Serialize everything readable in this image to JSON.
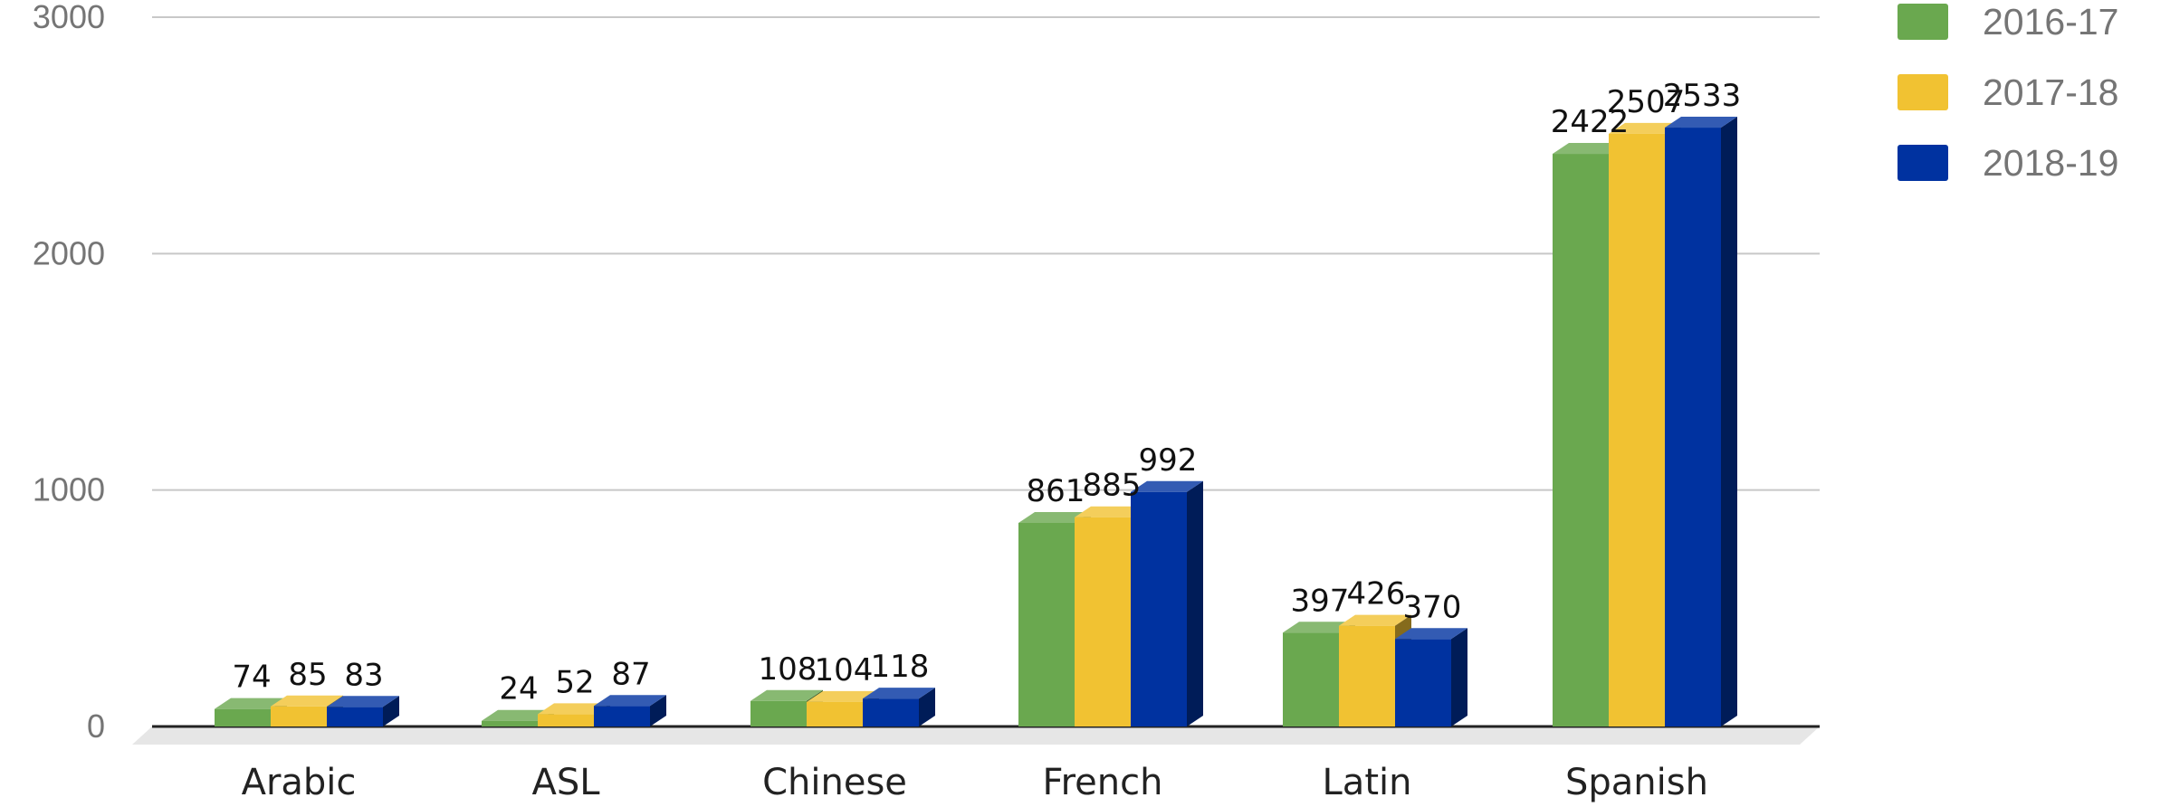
{
  "chart_data": {
    "type": "bar",
    "categories": [
      "Arabic",
      "ASL",
      "Chinese",
      "French",
      "Latin",
      "Spanish"
    ],
    "series": [
      {
        "name": "2016-17",
        "color": "#6aa84f",
        "values": [
          74,
          24,
          108,
          861,
          397,
          2422
        ]
      },
      {
        "name": "2017-18",
        "color": "#f1c232",
        "values": [
          85,
          52,
          104,
          885,
          426,
          2507
        ]
      },
      {
        "name": "2018-19",
        "color": "#0032a0",
        "values": [
          83,
          87,
          118,
          992,
          370,
          2533
        ]
      }
    ],
    "yticks": [
      "0",
      "1000",
      "2000",
      "3000"
    ],
    "ylim": [
      0,
      3000
    ],
    "title": "",
    "xlabel": "",
    "ylabel": "",
    "grid": true,
    "legend": "top-right",
    "style": "3d-bar"
  }
}
